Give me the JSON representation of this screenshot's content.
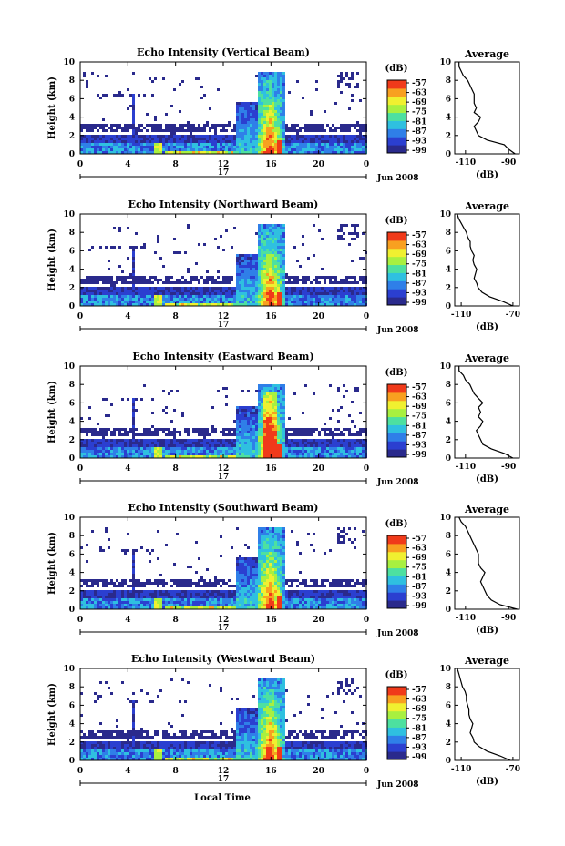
{
  "figure": {
    "x_axis_label": "Local Time",
    "height_label": "Height (km)",
    "avg_title": "Average",
    "db_label": "(dB)",
    "colorbar_unit": "(dB)",
    "colorbar_ticks": [
      "-57",
      "-63",
      "-69",
      "-75",
      "-81",
      "-87",
      "-93",
      "-99"
    ],
    "date_day": "17",
    "date_label": "Jun 2008"
  },
  "colorscale": {
    "min_db": -99,
    "max_db": -57,
    "colors": [
      "#2a2a8c",
      "#2b3fd0",
      "#2f7fe8",
      "#2fc0e0",
      "#4de0a0",
      "#a8f040",
      "#f0f030",
      "#f8a020",
      "#f03a1a"
    ]
  },
  "chart_data": [
    {
      "type": "heatmap",
      "title": "Echo Intensity (Vertical Beam)",
      "xlabel": "Local Time",
      "ylabel": "Height (km)",
      "xlim": [
        0,
        24
      ],
      "ylim": [
        0,
        10
      ],
      "xticks": [
        "0",
        "4",
        "8",
        "12",
        "16",
        "20",
        "0"
      ],
      "yticks": [
        "0",
        "2",
        "4",
        "6",
        "8",
        "10"
      ],
      "colorbar": {
        "label": "(dB)",
        "range": [
          -99,
          -57
        ]
      },
      "average_profile": {
        "title": "Average",
        "xlabel": "(dB)",
        "xticks": [
          "-110",
          "-90"
        ],
        "xlim": [
          -115,
          -85
        ],
        "height_km": [
          0,
          0.5,
          1,
          1.5,
          2,
          2.5,
          3,
          3.5,
          4,
          4.5,
          5,
          5.5,
          6,
          6.5,
          7,
          7.5,
          8,
          8.5,
          9,
          9.5,
          10
        ],
        "db": [
          -87,
          -90,
          -92,
          -100,
          -104,
          -105,
          -106,
          -104,
          -103,
          -106,
          -105,
          -106,
          -106,
          -106,
          -107,
          -108,
          -109,
          -111,
          -112,
          -113,
          -113
        ]
      }
    },
    {
      "type": "heatmap",
      "title": "Echo Intensity (Northward Beam)",
      "xlabel": "Local Time",
      "ylabel": "Height (km)",
      "xlim": [
        0,
        24
      ],
      "ylim": [
        0,
        10
      ],
      "xticks": [
        "0",
        "4",
        "8",
        "12",
        "16",
        "20",
        "0"
      ],
      "yticks": [
        "0",
        "2",
        "4",
        "6",
        "8",
        "10"
      ],
      "colorbar": {
        "label": "(dB)",
        "range": [
          -99,
          -57
        ]
      },
      "average_profile": {
        "title": "Average",
        "xlabel": "(dB)",
        "xticks": [
          "-110",
          "-70"
        ],
        "xlim": [
          -115,
          -65
        ],
        "height_km": [
          0,
          0.5,
          1,
          1.5,
          2,
          2.5,
          3,
          3.5,
          4,
          4.5,
          5,
          5.5,
          6,
          6.5,
          7,
          7.5,
          8,
          8.5,
          9,
          9.5,
          10
        ],
        "db": [
          -70,
          -78,
          -88,
          -94,
          -97,
          -98,
          -100,
          -99,
          -98,
          -100,
          -101,
          -100,
          -102,
          -103,
          -103,
          -105,
          -106,
          -108,
          -110,
          -112,
          -113
        ]
      }
    },
    {
      "type": "heatmap",
      "title": "Echo Intensity (Eastward Beam)",
      "xlabel": "Local Time",
      "ylabel": "Height (km)",
      "xlim": [
        0,
        24
      ],
      "ylim": [
        0,
        10
      ],
      "xticks": [
        "0",
        "4",
        "8",
        "12",
        "16",
        "20",
        "0"
      ],
      "yticks": [
        "0",
        "2",
        "4",
        "6",
        "8",
        "10"
      ],
      "colorbar": {
        "label": "(dB)",
        "range": [
          -99,
          -57
        ]
      },
      "average_profile": {
        "title": "Average",
        "xlabel": "(dB)",
        "xticks": [
          "-110",
          "-90"
        ],
        "xlim": [
          -115,
          -85
        ],
        "height_km": [
          0,
          0.5,
          1,
          1.5,
          2,
          2.5,
          3,
          3.5,
          4,
          4.5,
          5,
          5.5,
          6,
          6.5,
          7,
          7.5,
          8,
          8.5,
          9,
          9.5,
          10
        ],
        "db": [
          -88,
          -92,
          -98,
          -102,
          -103,
          -104,
          -105,
          -103,
          -102,
          -104,
          -103,
          -104,
          -102,
          -104,
          -106,
          -107,
          -108,
          -110,
          -111,
          -113,
          -113
        ]
      }
    },
    {
      "type": "heatmap",
      "title": "Echo Intensity (Southward Beam)",
      "xlabel": "Local Time",
      "ylabel": "Height (km)",
      "xlim": [
        0,
        24
      ],
      "ylim": [
        0,
        10
      ],
      "xticks": [
        "0",
        "4",
        "8",
        "12",
        "16",
        "20",
        "0"
      ],
      "yticks": [
        "0",
        "2",
        "4",
        "6",
        "8",
        "10"
      ],
      "colorbar": {
        "label": "(dB)",
        "range": [
          -99,
          -57
        ]
      },
      "average_profile": {
        "title": "Average",
        "xlabel": "(dB)",
        "xticks": [
          "-110",
          "-90"
        ],
        "xlim": [
          -115,
          -85
        ],
        "height_km": [
          0,
          0.5,
          1,
          1.5,
          2,
          2.5,
          3,
          3.5,
          4,
          4.5,
          5,
          5.5,
          6,
          6.5,
          7,
          7.5,
          8,
          8.5,
          9,
          9.5,
          10
        ],
        "db": [
          -86,
          -94,
          -98,
          -100,
          -101,
          -102,
          -103,
          -102,
          -101,
          -103,
          -104,
          -104,
          -104,
          -105,
          -106,
          -107,
          -108,
          -109,
          -110,
          -112,
          -113
        ]
      }
    },
    {
      "type": "heatmap",
      "title": "Echo Intensity (Westward Beam)",
      "xlabel": "Local Time",
      "ylabel": "Height (km)",
      "xlim": [
        0,
        24
      ],
      "ylim": [
        0,
        10
      ],
      "xticks": [
        "0",
        "4",
        "8",
        "12",
        "16",
        "20",
        "0"
      ],
      "yticks": [
        "0",
        "2",
        "4",
        "6",
        "8",
        "10"
      ],
      "colorbar": {
        "label": "(dB)",
        "range": [
          -99,
          -57
        ]
      },
      "average_profile": {
        "title": "Average",
        "xlabel": "(dB)",
        "xticks": [
          "-110",
          "-70"
        ],
        "xlim": [
          -115,
          -65
        ],
        "height_km": [
          0,
          0.5,
          1,
          1.5,
          2,
          2.5,
          3,
          3.5,
          4,
          4.5,
          5,
          5.5,
          6,
          6.5,
          7,
          7.5,
          8,
          8.5,
          9,
          9.5,
          10
        ],
        "db": [
          -72,
          -80,
          -90,
          -96,
          -100,
          -101,
          -103,
          -102,
          -101,
          -103,
          -104,
          -104,
          -105,
          -106,
          -106,
          -107,
          -109,
          -110,
          -111,
          -112,
          -113
        ]
      }
    }
  ]
}
